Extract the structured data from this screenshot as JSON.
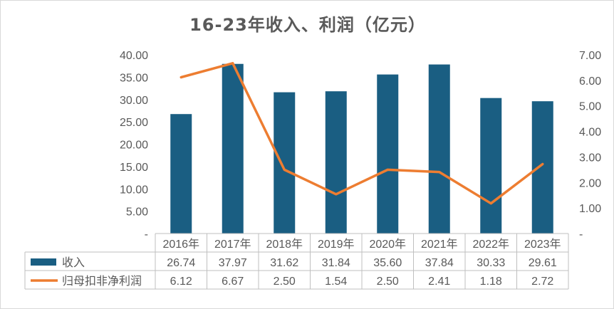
{
  "chart_data": {
    "type": "bar",
    "title": "16-23年收入、利润（亿元）",
    "categories": [
      "2016年",
      "2017年",
      "2018年",
      "2019年",
      "2020年",
      "2021年",
      "2022年",
      "2023年"
    ],
    "series": [
      {
        "name": "收入",
        "type": "bar",
        "axis": "left",
        "color": "#1a5e82",
        "values": [
          26.74,
          37.97,
          31.62,
          31.84,
          35.6,
          37.84,
          30.33,
          29.61
        ],
        "display": [
          "26.74",
          "37.97",
          "31.62",
          "31.84",
          "35.60",
          "37.84",
          "30.33",
          "29.61"
        ]
      },
      {
        "name": "归母扣非净利润",
        "type": "line",
        "axis": "right",
        "color": "#ed7d31",
        "values": [
          6.12,
          6.67,
          2.5,
          1.54,
          2.5,
          2.41,
          1.18,
          2.72
        ],
        "display": [
          "6.12",
          "6.67",
          "2.50",
          "1.54",
          "2.50",
          "2.41",
          "1.18",
          "2.72"
        ]
      }
    ],
    "y_left": {
      "min": 0,
      "max": 40,
      "ticks": [
        "-",
        "5.00",
        "10.00",
        "15.00",
        "20.00",
        "25.00",
        "30.00",
        "35.00",
        "40.00"
      ]
    },
    "y_right": {
      "min": 0,
      "max": 7,
      "ticks": [
        "-",
        "1.00",
        "2.00",
        "3.00",
        "4.00",
        "5.00",
        "6.00",
        "7.00"
      ]
    },
    "grid": false,
    "legend": "data-table"
  }
}
